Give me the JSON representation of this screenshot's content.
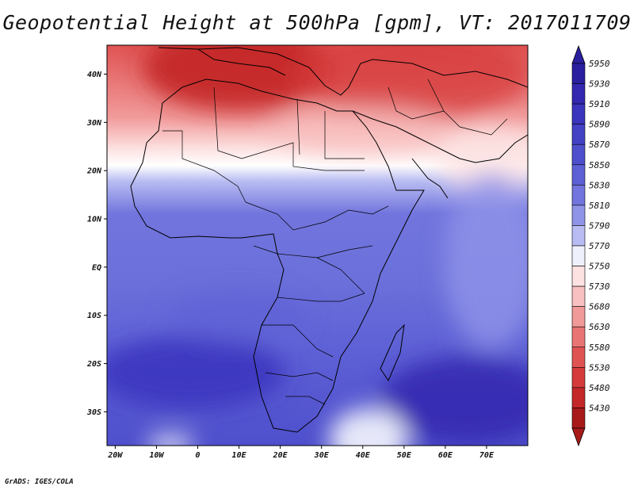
{
  "title": "Geopotential Height at 500hPa [gpm], VT: 2017011709",
  "footer": "GrADS: IGES/COLA",
  "map": {
    "region": "Africa and Middle East",
    "lon_labels": [
      "20W",
      "10W",
      "0",
      "10E",
      "20E",
      "30E",
      "40E",
      "50E",
      "60E",
      "70E"
    ],
    "lon_values": [
      -20,
      -10,
      0,
      10,
      20,
      30,
      40,
      50,
      60,
      70
    ],
    "lat_labels": [
      "40N",
      "30N",
      "20N",
      "10N",
      "EQ",
      "10S",
      "20S",
      "30S"
    ],
    "lat_values": [
      40,
      30,
      20,
      10,
      0,
      -10,
      -20,
      -30
    ],
    "lon_range": [
      -22,
      80
    ],
    "lat_range": [
      -37,
      46
    ]
  },
  "colorbar": {
    "labels": [
      "5950",
      "5930",
      "5910",
      "5890",
      "5870",
      "5850",
      "5830",
      "5810",
      "5790",
      "5770",
      "5750",
      "5730",
      "5680",
      "5630",
      "5580",
      "5530",
      "5480",
      "5430"
    ],
    "colors": [
      "#2a1f9e",
      "#3428b0",
      "#3b34bd",
      "#4341c4",
      "#4e4fcc",
      "#5d5fd5",
      "#7275dd",
      "#9094e8",
      "#b8bcf2",
      "#eef0fb",
      "#fde2e2",
      "#f8c0c0",
      "#f19a9a",
      "#e97474",
      "#e05353",
      "#d53b3b",
      "#c42828",
      "#a81a1a"
    ]
  }
}
